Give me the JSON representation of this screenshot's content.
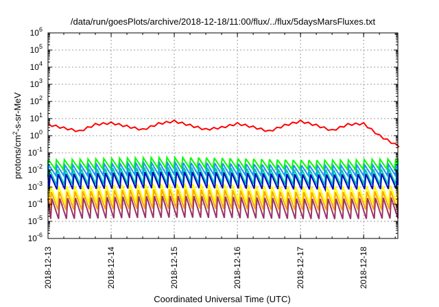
{
  "chart_data": {
    "type": "line",
    "title": "/data/run/goesPlots/archive/2018-12-18/11:00/flux/../flux/5daysMarsFluxes.txt",
    "xlabel": "Coordinated Universal Time (UTC)",
    "ylabel": "protons/cm2-s-sr-MeV",
    "ylabel_base": "protons/cm",
    "ylabel_sup": "2",
    "ylabel_rest": "-s-sr-MeV",
    "yscale": "log",
    "ylim": [
      1e-06,
      1000000.0
    ],
    "y_tick_exponents": [
      -6,
      -5,
      -4,
      -3,
      -2,
      -1,
      0,
      1,
      2,
      3,
      4,
      5,
      6
    ],
    "xlim": [
      "2018-12-13",
      "2018-12-18T13:00"
    ],
    "x_tick_labels": [
      "2018-12-13",
      "2018-12-14",
      "2018-12-15",
      "2018-12-16",
      "2018-12-17",
      "2018-12-18"
    ],
    "grid": true,
    "legend": "none",
    "sawtooth_period_hours": 3,
    "series": [
      {
        "color": "#ff0000",
        "points": [
          [
            "2018-12-13T00:00",
            4.5
          ],
          [
            "2018-12-13T06:00",
            2.8
          ],
          [
            "2018-12-13T12:00",
            1.8
          ],
          [
            "2018-12-13T18:00",
            4.5
          ],
          [
            "2018-12-14T00:00",
            5.5
          ],
          [
            "2018-12-14T06:00",
            3.5
          ],
          [
            "2018-12-14T12:00",
            2.2
          ],
          [
            "2018-12-14T18:00",
            5.0
          ],
          [
            "2018-12-15T00:00",
            7.0
          ],
          [
            "2018-12-15T06:00",
            4.0
          ],
          [
            "2018-12-15T12:00",
            2.3
          ],
          [
            "2018-12-15T18:00",
            3.0
          ],
          [
            "2018-12-16T00:00",
            5.0
          ],
          [
            "2018-12-16T06:00",
            3.2
          ],
          [
            "2018-12-16T12:00",
            1.8
          ],
          [
            "2018-12-16T18:00",
            4.0
          ],
          [
            "2018-12-17T00:00",
            7.0
          ],
          [
            "2018-12-17T06:00",
            4.0
          ],
          [
            "2018-12-17T12:00",
            2.0
          ],
          [
            "2018-12-17T18:00",
            4.5
          ],
          [
            "2018-12-18T00:00",
            5.0
          ],
          [
            "2018-12-18T06:00",
            1.0
          ],
          [
            "2018-12-18T13:00",
            0.25
          ]
        ]
      },
      {
        "color": "#00ff00",
        "min": 0.012,
        "max": 0.045
      },
      {
        "color": "#1e90ff",
        "min": 0.005,
        "max": 0.022
      },
      {
        "color": "#00ccaa",
        "min": 0.0015,
        "max": 0.012
      },
      {
        "color": "#0000cc",
        "min": 0.0008,
        "max": 0.0065
      },
      {
        "color": "#ffff00",
        "min": 0.00012,
        "max": 0.0013
      },
      {
        "color": "#ffa500",
        "min": 5e-05,
        "max": 0.0006
      },
      {
        "color": "#993366",
        "min": 1.5e-05,
        "max": 0.00025
      }
    ]
  }
}
